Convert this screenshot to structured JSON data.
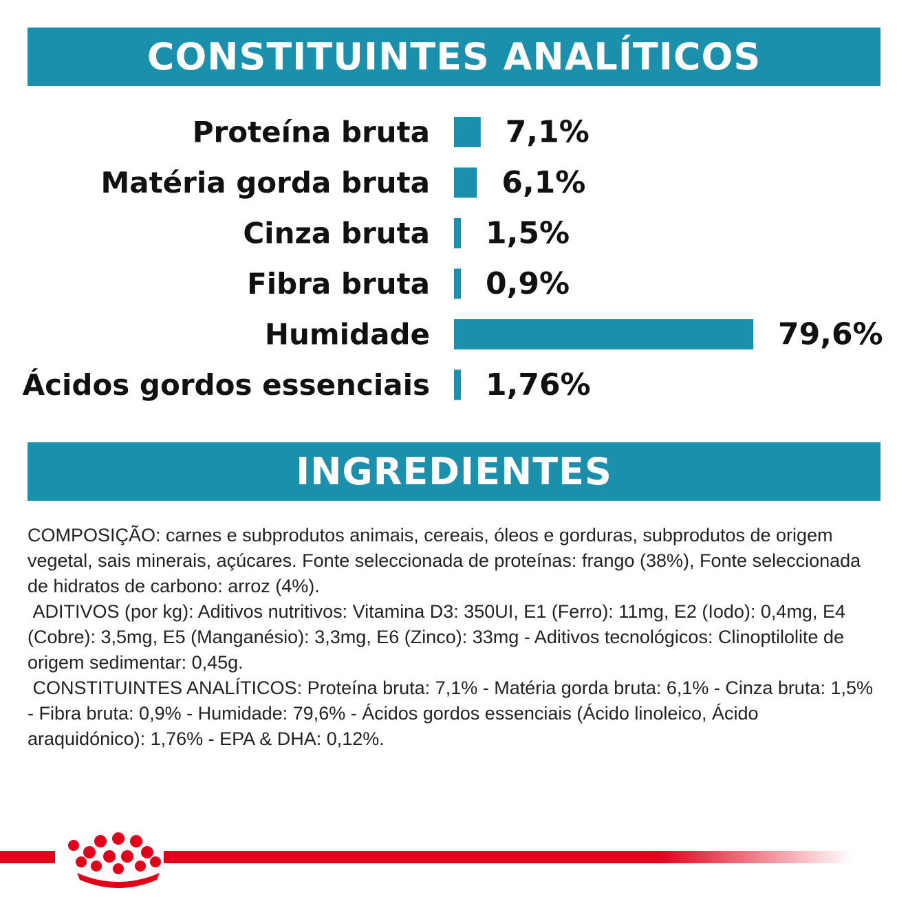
{
  "colors": {
    "accent": "#1b90ad",
    "brand_red": "#e1001a"
  },
  "headings": {
    "analytical": "CONSTITUINTES ANALÍTICOS",
    "ingredients": "INGREDIENTES"
  },
  "chart_data": {
    "type": "bar",
    "orientation": "horizontal",
    "title": "CONSTITUINTES ANALÍTICOS",
    "categories": [
      "Proteína bruta",
      "Matéria gorda bruta",
      "Cinza bruta",
      "Fibra bruta",
      "Humidade",
      "Ácidos gordos essenciais"
    ],
    "values": [
      7.1,
      6.1,
      1.5,
      0.9,
      79.6,
      1.76
    ],
    "value_labels": [
      "7,1%",
      "6,1%",
      "1,5%",
      "0,9%",
      "79,6%",
      "1,76%"
    ],
    "unit": "%",
    "xlim": [
      0,
      79.6
    ],
    "grid": false,
    "legend": "none"
  },
  "ingredients": {
    "paragraphs": [
      "COMPOSIÇÃO: carnes e subprodutos animais, cereais, óleos e gorduras, subprodutos de origem vegetal, sais minerais, açúcares. Fonte seleccionada de proteínas: frango (38%), Fonte seleccionada de hidratos de carbono: arroz (4%).",
      " ADITIVOS (por kg): Aditivos nutritivos: Vitamina D3: 350UI, E1 (Ferro): 11mg, E2 (Iodo): 0,4mg, E4 (Cobre): 3,5mg, E5 (Manganésio): 3,3mg, E6 (Zinco): 33mg - Aditivos tecnológicos: Clinoptilolite de origem sedimentar: 0,45g.",
      " CONSTITUINTES ANALÍTICOS: Proteína bruta: 7,1% - Matéria gorda bruta: 6,1% - Cinza bruta: 1,5% - Fibra bruta: 0,9% - Humidade: 79,6% - Ácidos gordos essenciais (Ácido linoleico, Ácido araquidónico): 1,76% - EPA & DHA: 0,12%."
    ]
  },
  "footer": {
    "logo_icon": "crown-icon"
  }
}
